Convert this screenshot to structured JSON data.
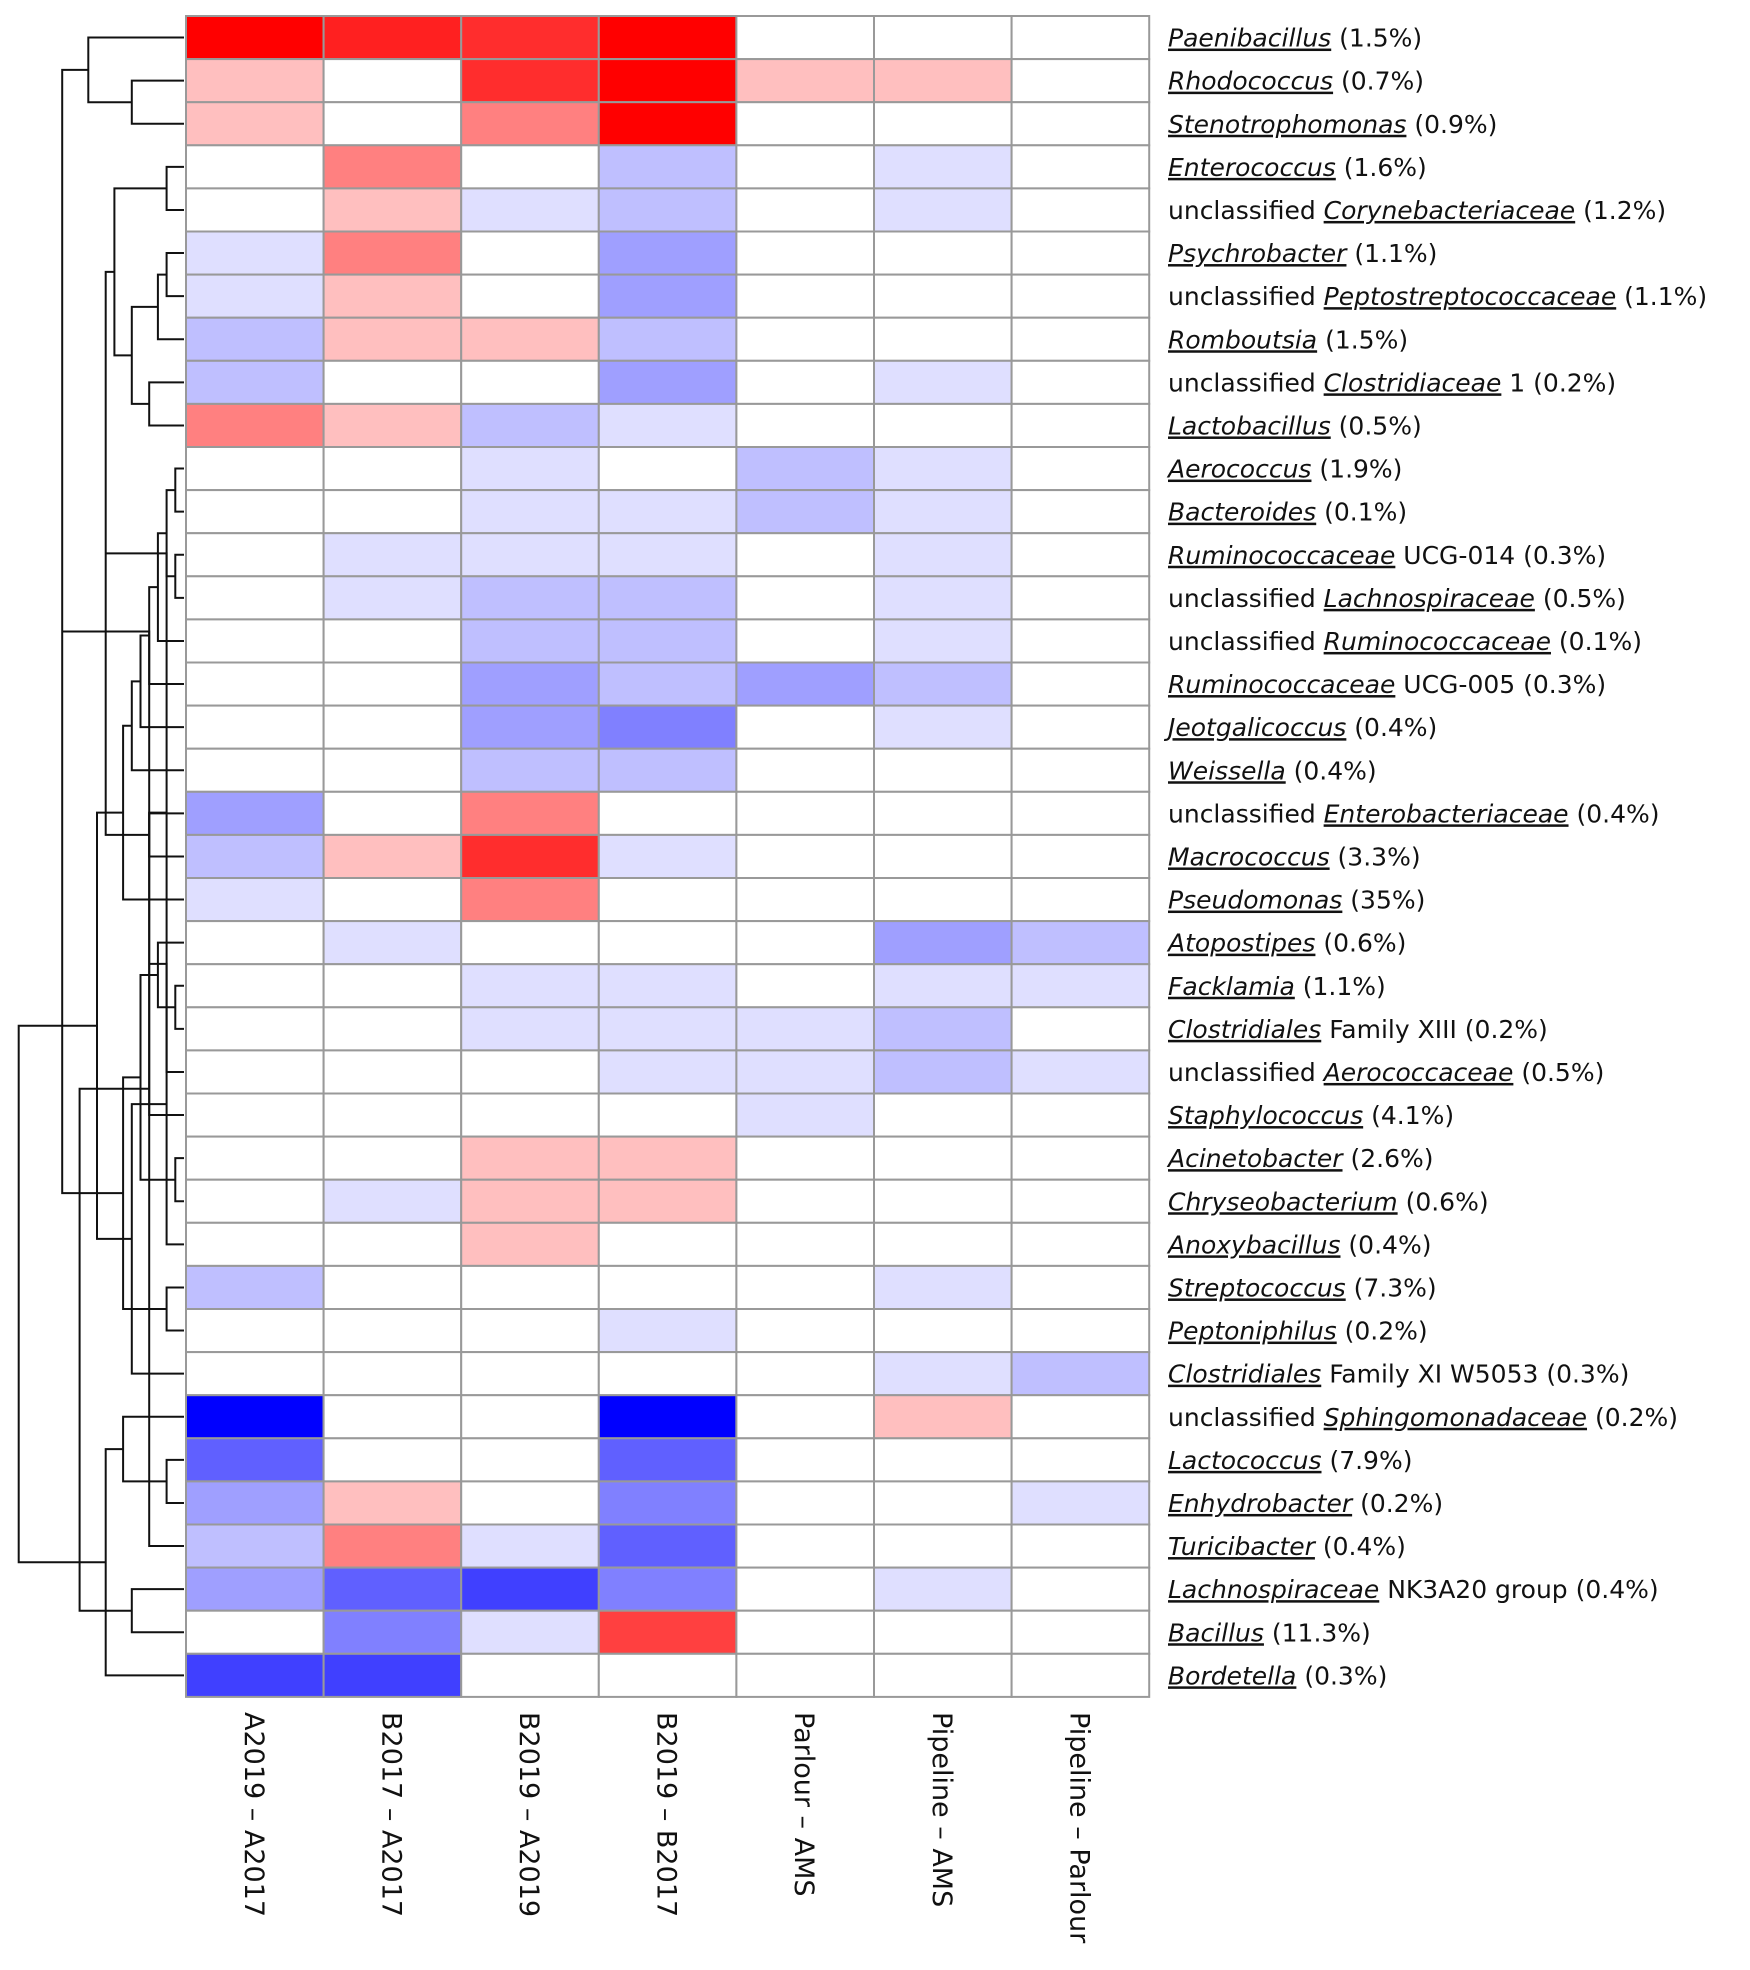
{
  "chart_data": {
    "type": "heatmap",
    "title": "",
    "color_scale": {
      "negative": "#0000ff",
      "zero": "#ffffff",
      "positive": "#ff0000",
      "range": [
        -4,
        4
      ]
    },
    "columns": [
      "A2019 – A2017",
      "B2017 – A2017",
      "B2019 – A2019",
      "B2019 – B2017",
      "Parlour – AMS",
      "Pipeline – AMS",
      "Pipeline – Parlour"
    ],
    "rows": [
      {
        "parts": [
          {
            "t": "Paenibacillus",
            "i": true
          },
          {
            "t": " (1.5%)",
            "i": false
          }
        ],
        "values": [
          4,
          3.5,
          3.3,
          4,
          0,
          0,
          0
        ]
      },
      {
        "parts": [
          {
            "t": "Rhodococcus",
            "i": true
          },
          {
            "t": " (0.7%)",
            "i": false
          }
        ],
        "values": [
          1,
          0,
          3.3,
          4,
          1,
          1,
          0
        ]
      },
      {
        "parts": [
          {
            "t": "Stenotrophomonas",
            "i": true
          },
          {
            "t": " (0.9%)",
            "i": false
          }
        ],
        "values": [
          1,
          0,
          2,
          4,
          0,
          0,
          0
        ]
      },
      {
        "parts": [
          {
            "t": "Enterococcus",
            "i": true
          },
          {
            "t": " (1.6%)",
            "i": false
          }
        ],
        "values": [
          0,
          2,
          0,
          -1,
          0,
          -0.5,
          0
        ]
      },
      {
        "parts": [
          {
            "t": "unclassified ",
            "i": false
          },
          {
            "t": "Corynebacteriaceae",
            "i": true
          },
          {
            "t": " (1.2%)",
            "i": false
          }
        ],
        "values": [
          0,
          1,
          -0.5,
          -1,
          0,
          -0.5,
          0
        ]
      },
      {
        "parts": [
          {
            "t": "Psychrobacter",
            "i": true
          },
          {
            "t": " (1.1%)",
            "i": false
          }
        ],
        "values": [
          -0.5,
          2,
          0,
          -1.5,
          0,
          0,
          0
        ]
      },
      {
        "parts": [
          {
            "t": "unclassified ",
            "i": false
          },
          {
            "t": "Peptostreptococcaceae",
            "i": true
          },
          {
            "t": " (1.1%)",
            "i": false
          }
        ],
        "values": [
          -0.5,
          1,
          0,
          -1.5,
          0,
          0,
          0
        ]
      },
      {
        "parts": [
          {
            "t": "Romboutsia",
            "i": true
          },
          {
            "t": " (1.5%)",
            "i": false
          }
        ],
        "values": [
          -1,
          1,
          1,
          -1,
          0,
          0,
          0
        ]
      },
      {
        "parts": [
          {
            "t": "unclassified ",
            "i": false
          },
          {
            "t": "Clostridiaceae",
            "i": true
          },
          {
            "t": " 1 (0.2%)",
            "i": false
          }
        ],
        "values": [
          -1,
          0,
          0,
          -1.5,
          0,
          -0.5,
          0
        ]
      },
      {
        "parts": [
          {
            "t": "Lactobacillus",
            "i": true
          },
          {
            "t": " (0.5%)",
            "i": false
          }
        ],
        "values": [
          2,
          1,
          -1,
          -0.5,
          0,
          0,
          0
        ]
      },
      {
        "parts": [
          {
            "t": "Aerococcus",
            "i": true
          },
          {
            "t": " (1.9%)",
            "i": false
          }
        ],
        "values": [
          0,
          0,
          -0.5,
          0,
          -1,
          -0.5,
          0
        ]
      },
      {
        "parts": [
          {
            "t": "Bacteroides",
            "i": true
          },
          {
            "t": " (0.1%)",
            "i": false
          }
        ],
        "values": [
          0,
          0,
          -0.5,
          -0.5,
          -1,
          -0.5,
          0
        ]
      },
      {
        "parts": [
          {
            "t": "Ruminococcaceae",
            "i": true
          },
          {
            "t": " UCG-014 (0.3%)",
            "i": false
          }
        ],
        "values": [
          0,
          -0.5,
          -0.5,
          -0.5,
          0,
          -0.5,
          0
        ]
      },
      {
        "parts": [
          {
            "t": "unclassified ",
            "i": false
          },
          {
            "t": "Lachnospiraceae",
            "i": true
          },
          {
            "t": " (0.5%)",
            "i": false
          }
        ],
        "values": [
          0,
          -0.5,
          -1,
          -1,
          0,
          -0.5,
          0
        ]
      },
      {
        "parts": [
          {
            "t": "unclassified ",
            "i": false
          },
          {
            "t": "Ruminococcaceae",
            "i": true
          },
          {
            "t": " (0.1%)",
            "i": false
          }
        ],
        "values": [
          0,
          0,
          -1,
          -1,
          0,
          -0.5,
          0
        ]
      },
      {
        "parts": [
          {
            "t": "Ruminococcaceae",
            "i": true
          },
          {
            "t": " UCG-005 (0.3%)",
            "i": false
          }
        ],
        "values": [
          0,
          0,
          -1.5,
          -1,
          -1.5,
          -1,
          0
        ]
      },
      {
        "parts": [
          {
            "t": "Jeotgalicoccus",
            "i": true
          },
          {
            "t": " (0.4%)",
            "i": false
          }
        ],
        "values": [
          0,
          0,
          -1.5,
          -2,
          0,
          -0.5,
          0
        ]
      },
      {
        "parts": [
          {
            "t": "Weissella",
            "i": true
          },
          {
            "t": " (0.4%)",
            "i": false
          }
        ],
        "values": [
          0,
          0,
          -1,
          -1,
          0,
          0,
          0
        ]
      },
      {
        "parts": [
          {
            "t": "unclassified ",
            "i": false
          },
          {
            "t": "Enterobacteriaceae",
            "i": true
          },
          {
            "t": " (0.4%)",
            "i": false
          }
        ],
        "values": [
          -1.5,
          0,
          2,
          0,
          0,
          0,
          0
        ]
      },
      {
        "parts": [
          {
            "t": "Macrococcus",
            "i": true
          },
          {
            "t": " (3.3%)",
            "i": false
          }
        ],
        "values": [
          -1,
          1,
          3.3,
          -0.5,
          0,
          0,
          0
        ]
      },
      {
        "parts": [
          {
            "t": "Pseudomonas",
            "i": true
          },
          {
            "t": " (35%)",
            "i": false
          }
        ],
        "values": [
          -0.5,
          0,
          2,
          0,
          0,
          0,
          0
        ]
      },
      {
        "parts": [
          {
            "t": "Atopostipes",
            "i": true
          },
          {
            "t": " (0.6%)",
            "i": false
          }
        ],
        "values": [
          0,
          -0.5,
          0,
          0,
          0,
          -1.5,
          -1
        ]
      },
      {
        "parts": [
          {
            "t": "Facklamia",
            "i": true
          },
          {
            "t": " (1.1%)",
            "i": false
          }
        ],
        "values": [
          0,
          0,
          -0.5,
          -0.5,
          0,
          -0.5,
          -0.5
        ]
      },
      {
        "parts": [
          {
            "t": "Clostridiales",
            "i": true
          },
          {
            "t": " Family XIII (0.2%)",
            "i": false
          }
        ],
        "values": [
          0,
          0,
          -0.5,
          -0.5,
          -0.5,
          -1,
          0
        ]
      },
      {
        "parts": [
          {
            "t": "unclassified ",
            "i": false
          },
          {
            "t": "Aerococcaceae",
            "i": true
          },
          {
            "t": " (0.5%)",
            "i": false
          }
        ],
        "values": [
          0,
          0,
          0,
          -0.5,
          -0.5,
          -1,
          -0.5
        ]
      },
      {
        "parts": [
          {
            "t": "Staphylococcus",
            "i": true
          },
          {
            "t": " (4.1%)",
            "i": false
          }
        ],
        "values": [
          0,
          0,
          0,
          0,
          -0.5,
          0,
          0
        ]
      },
      {
        "parts": [
          {
            "t": "Acinetobacter",
            "i": true
          },
          {
            "t": " (2.6%)",
            "i": false
          }
        ],
        "values": [
          0,
          0,
          1,
          1,
          0,
          0,
          0
        ]
      },
      {
        "parts": [
          {
            "t": "Chryseobacterium",
            "i": true
          },
          {
            "t": " (0.6%)",
            "i": false
          }
        ],
        "values": [
          0,
          -0.5,
          1,
          1,
          0,
          0,
          0
        ]
      },
      {
        "parts": [
          {
            "t": "Anoxybacillus",
            "i": true
          },
          {
            "t": " (0.4%)",
            "i": false
          }
        ],
        "values": [
          0,
          0,
          1,
          0,
          0,
          0,
          0
        ]
      },
      {
        "parts": [
          {
            "t": "Streptococcus",
            "i": true
          },
          {
            "t": " (7.3%)",
            "i": false
          }
        ],
        "values": [
          -1,
          0,
          0,
          0,
          0,
          -0.5,
          0
        ]
      },
      {
        "parts": [
          {
            "t": "Peptoniphilus",
            "i": true
          },
          {
            "t": " (0.2%)",
            "i": false
          }
        ],
        "values": [
          0,
          0,
          0,
          -0.5,
          0,
          0,
          0
        ]
      },
      {
        "parts": [
          {
            "t": "Clostridiales",
            "i": true
          },
          {
            "t": " Family XI W5053 (0.3%)",
            "i": false
          }
        ],
        "values": [
          0,
          0,
          0,
          0,
          0,
          -0.5,
          -1
        ]
      },
      {
        "parts": [
          {
            "t": "unclassified ",
            "i": false
          },
          {
            "t": "Sphingomonadaceae",
            "i": true
          },
          {
            "t": " (0.2%)",
            "i": false
          }
        ],
        "values": [
          -4,
          0,
          0,
          -4,
          0,
          1,
          0
        ]
      },
      {
        "parts": [
          {
            "t": "Lactococcus",
            "i": true
          },
          {
            "t": " (7.9%)",
            "i": false
          }
        ],
        "values": [
          -2.5,
          0,
          0,
          -2.5,
          0,
          0,
          0
        ]
      },
      {
        "parts": [
          {
            "t": "Enhydrobacter",
            "i": true
          },
          {
            "t": " (0.2%)",
            "i": false
          }
        ],
        "values": [
          -1.5,
          1,
          0,
          -2,
          0,
          0,
          -0.5
        ]
      },
      {
        "parts": [
          {
            "t": "Turicibacter",
            "i": true
          },
          {
            "t": " (0.4%)",
            "i": false
          }
        ],
        "values": [
          -1,
          2,
          -0.5,
          -2.5,
          0,
          0,
          0
        ]
      },
      {
        "parts": [
          {
            "t": "Lachnospiraceae",
            "i": true
          },
          {
            "t": " NK3A20 group (0.4%)",
            "i": false
          }
        ],
        "values": [
          -1.5,
          -2.5,
          -3,
          -2,
          0,
          -0.5,
          0
        ]
      },
      {
        "parts": [
          {
            "t": "Bacillus",
            "i": true
          },
          {
            "t": " (11.3%)",
            "i": false
          }
        ],
        "values": [
          0,
          -2,
          -0.5,
          3,
          0,
          0,
          0
        ]
      },
      {
        "parts": [
          {
            "t": "Bordetella",
            "i": true
          },
          {
            "t": " (0.3%)",
            "i": false
          }
        ],
        "values": [
          -3,
          -3,
          0,
          0,
          0,
          0,
          0
        ]
      }
    ],
    "dendrogram": {
      "leaves": 39,
      "merges": [
        [
          1,
          2,
          0.3
        ],
        [
          0,
          39,
          0.55
        ],
        [
          3,
          4,
          0.1
        ],
        [
          5,
          6,
          0.1
        ],
        [
          42,
          7,
          0.15
        ],
        [
          8,
          9,
          0.2
        ],
        [
          43,
          44,
          0.3
        ],
        [
          41,
          45,
          0.4
        ],
        [
          10,
          11,
          0.05
        ],
        [
          12,
          13,
          0.05
        ],
        [
          47,
          48,
          0.1
        ],
        [
          49,
          14,
          0.15
        ],
        [
          50,
          15,
          0.2
        ],
        [
          51,
          16,
          0.25
        ],
        [
          52,
          17,
          0.3
        ],
        [
          18,
          19,
          0.2
        ],
        [
          53,
          20,
          0.35
        ],
        [
          46,
          54,
          0.45
        ],
        [
          22,
          23,
          0.05
        ],
        [
          56,
          24,
          0.1
        ],
        [
          21,
          57,
          0.15
        ],
        [
          58,
          25,
          0.2
        ],
        [
          26,
          27,
          0.05
        ],
        [
          60,
          28,
          0.1
        ],
        [
          29,
          30,
          0.1
        ],
        [
          59,
          61,
          0.25
        ],
        [
          62,
          31,
          0.3
        ],
        [
          63,
          64,
          0.35
        ],
        [
          55,
          65,
          0.5
        ],
        [
          40,
          66,
          0.7
        ],
        [
          33,
          34,
          0.1
        ],
        [
          35,
          68,
          0.2
        ],
        [
          32,
          69,
          0.35
        ],
        [
          36,
          37,
          0.3
        ],
        [
          71,
          38,
          0.45
        ],
        [
          70,
          72,
          0.6
        ],
        [
          67,
          73,
          0.95
        ]
      ]
    }
  }
}
